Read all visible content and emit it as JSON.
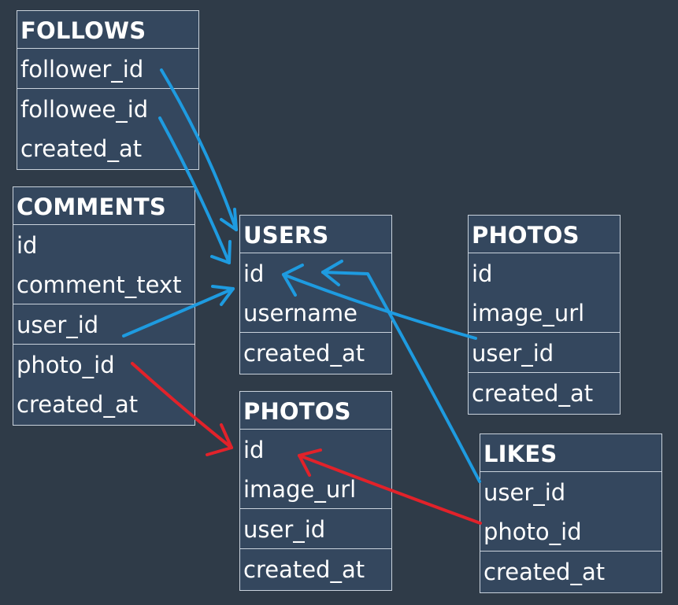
{
  "colors": {
    "background": "#2f3b48",
    "table_fill": "#34475e",
    "table_border": "#c9d2dc",
    "blue_arrow": "#1e9be0",
    "red_arrow": "#e2222a"
  },
  "tables": {
    "follows": {
      "title": "FOLLOWS",
      "groups": [
        [
          "follower_id"
        ],
        [
          "followee_id",
          "created_at"
        ]
      ]
    },
    "comments": {
      "title": "COMMENTS",
      "groups": [
        [
          "id",
          "comment_text"
        ],
        [
          "user_id"
        ],
        [
          "photo_id",
          "created_at"
        ]
      ]
    },
    "users": {
      "title": "USERS",
      "groups": [
        [
          "id",
          "username"
        ],
        [
          "created_at"
        ]
      ]
    },
    "photos_right": {
      "title": "PHOTOS",
      "groups": [
        [
          "id",
          "image_url"
        ],
        [
          "user_id"
        ],
        [
          "created_at"
        ]
      ]
    },
    "photos_center": {
      "title": "PHOTOS",
      "groups": [
        [
          "id",
          "image_url"
        ],
        [
          "user_id"
        ],
        [
          "created_at"
        ]
      ]
    },
    "likes": {
      "title": "LIKES",
      "groups": [
        [
          "user_id",
          "photo_id"
        ],
        [
          "created_at"
        ]
      ]
    }
  }
}
